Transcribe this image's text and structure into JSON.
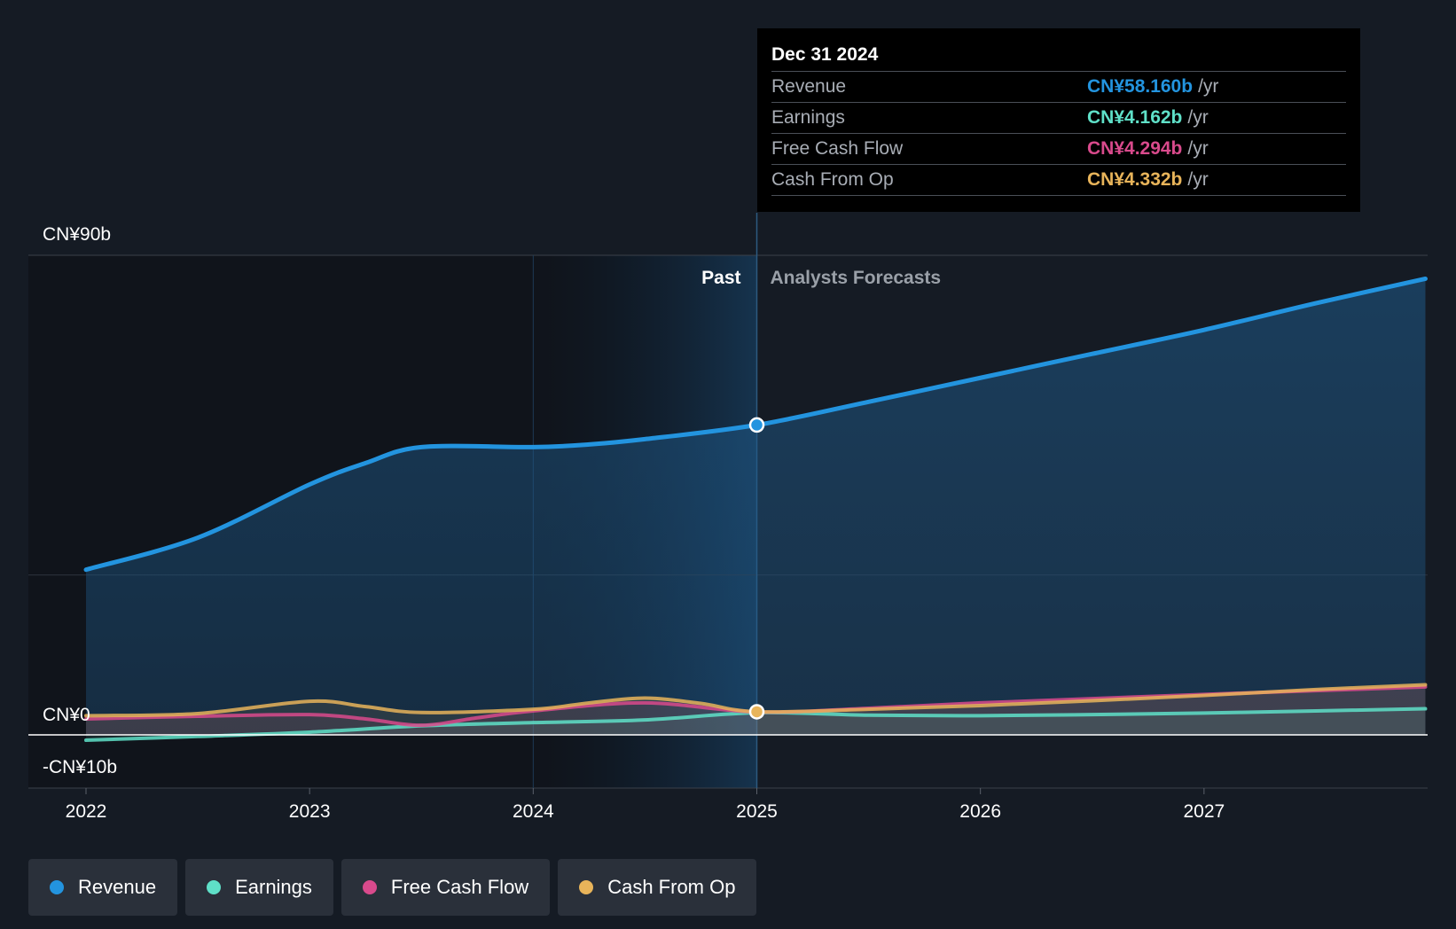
{
  "chart_data": {
    "type": "area",
    "y_ticks": [
      "CN¥90b",
      "CN¥0",
      "-CN¥10b"
    ],
    "x_ticks": [
      "2022",
      "2023",
      "2024",
      "2025",
      "2026",
      "2027"
    ],
    "ylim": [
      -10,
      90
    ],
    "xlim": [
      2022.0,
      2028.0
    ],
    "past_label": "Past",
    "forecast_label": "Analysts Forecasts",
    "past_end": 2025.0,
    "highlight_start": 2024.0,
    "series": [
      {
        "name": "Revenue",
        "color": "#2394df",
        "x": [
          2022.0,
          2022.5,
          2023.0,
          2023.25,
          2023.5,
          2024.0,
          2024.25,
          2024.5,
          2025.0,
          2025.5,
          2026.0,
          2026.5,
          2027.0,
          2027.5,
          2027.99
        ],
        "values": [
          31,
          37,
          47,
          51,
          54,
          54,
          54.5,
          55.5,
          58.16,
          62.5,
          67,
          71.5,
          76,
          81,
          85.6
        ]
      },
      {
        "name": "Earnings",
        "color": "#5fe0c8",
        "x": [
          2022.0,
          2022.5,
          2023.0,
          2023.5,
          2024.0,
          2024.5,
          2025.0,
          2025.5,
          2026.0,
          2026.5,
          2027.0,
          2027.5,
          2027.99
        ],
        "values": [
          -1,
          -0.3,
          0.5,
          1.7,
          2.3,
          2.8,
          4.162,
          3.7,
          3.6,
          3.8,
          4.1,
          4.5,
          4.9
        ]
      },
      {
        "name": "Free Cash Flow",
        "color": "#d94a8c",
        "x": [
          2022.0,
          2022.5,
          2023.0,
          2023.25,
          2023.5,
          2023.75,
          2024.0,
          2024.5,
          2025.0,
          2025.5,
          2026.0,
          2026.5,
          2027.0,
          2027.5,
          2027.99
        ],
        "values": [
          3,
          3.5,
          3.8,
          3,
          1.8,
          3.2,
          4.5,
          6,
          4.294,
          5,
          6,
          6.8,
          7.6,
          8.3,
          9
        ]
      },
      {
        "name": "Cash From Op",
        "color": "#e8b45a",
        "x": [
          2022.0,
          2022.5,
          2023.0,
          2023.25,
          2023.5,
          2024.0,
          2024.25,
          2024.5,
          2024.75,
          2025.0,
          2025.5,
          2026.0,
          2026.5,
          2027.0,
          2027.5,
          2027.99
        ],
        "values": [
          3.6,
          4,
          6.3,
          5.3,
          4.2,
          4.8,
          6,
          6.9,
          5.9,
          4.332,
          4.8,
          5.5,
          6.4,
          7.4,
          8.5,
          9.4
        ]
      }
    ],
    "tooltip": {
      "date": "Dec 31 2024",
      "unit": "/yr",
      "rows": [
        {
          "label": "Revenue",
          "value": "CN¥58.160b"
        },
        {
          "label": "Earnings",
          "value": "CN¥4.162b"
        },
        {
          "label": "Free Cash Flow",
          "value": "CN¥4.294b"
        },
        {
          "label": "Cash From Op",
          "value": "CN¥4.332b"
        }
      ]
    }
  },
  "colors": {
    "revenue": "#2394df",
    "earnings": "#5fe0c8",
    "free_cash_flow": "#d94a8c",
    "cash_from_op": "#e8b45a"
  },
  "legend": [
    {
      "label": "Revenue"
    },
    {
      "label": "Earnings"
    },
    {
      "label": "Free Cash Flow"
    },
    {
      "label": "Cash From Op"
    }
  ]
}
